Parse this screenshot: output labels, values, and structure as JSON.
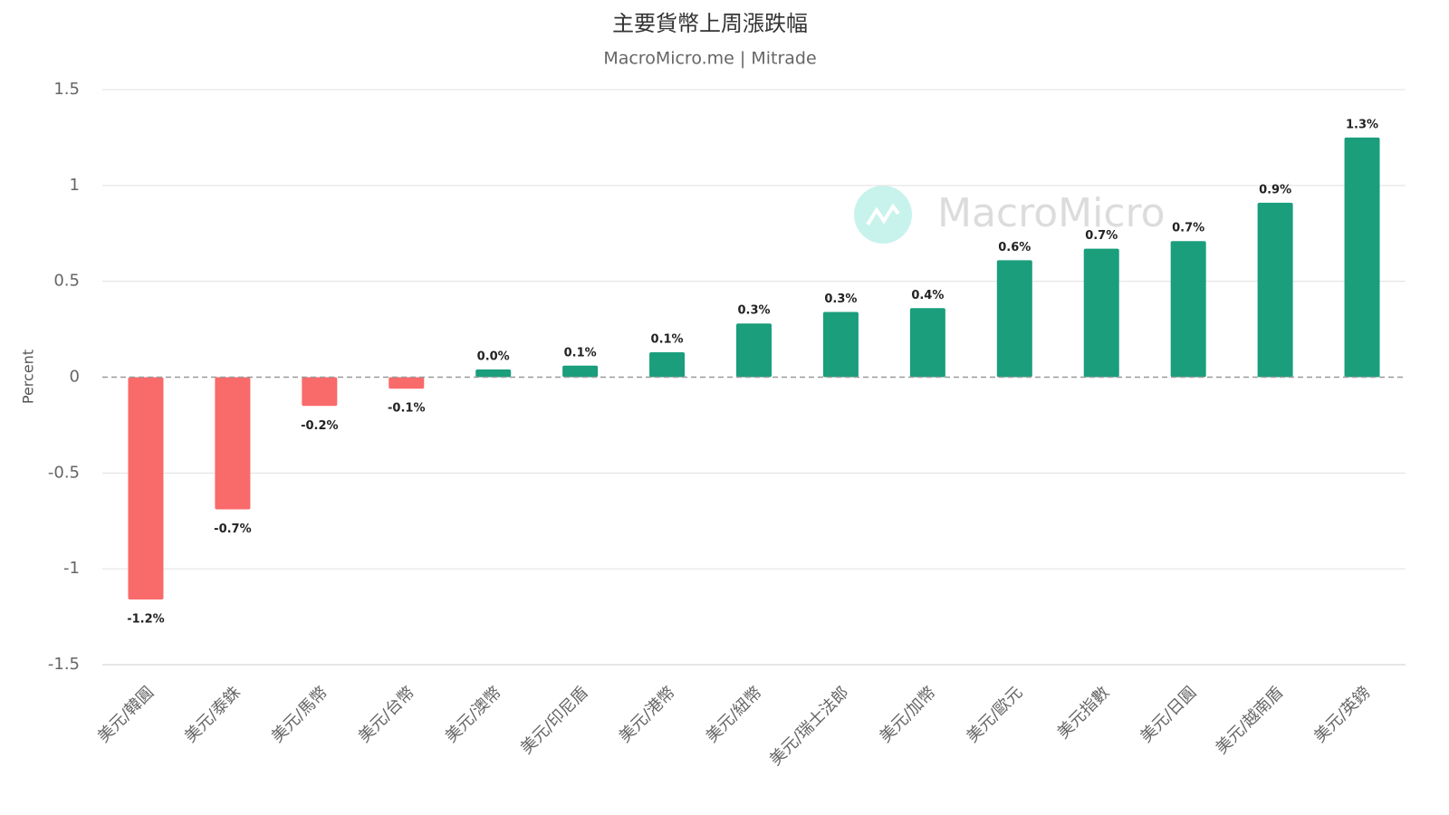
{
  "chart_data": {
    "type": "bar",
    "title": "主要貨幣上周漲跌幅",
    "subtitle": "MacroMicro.me | Mitrade",
    "watermark": "MacroMicro",
    "y_label": "Percent",
    "categories": [
      "美元/韓圓",
      "美元/泰銖",
      "美元/馬幣",
      "美元/台幣",
      "美元/澳幣",
      "美元/印尼盾",
      "美元/港幣",
      "美元/紐幣",
      "美元/瑞士法郎",
      "美元/加幣",
      "美元/歐元",
      "美元指數",
      "美元/日圓",
      "美元/越南盾",
      "美元/英鎊"
    ],
    "values": [
      -1.16,
      -0.69,
      -0.15,
      -0.06,
      0.04,
      0.06,
      0.13,
      0.28,
      0.34,
      0.36,
      0.61,
      0.67,
      0.71,
      0.91,
      1.25
    ],
    "value_labels": [
      "-1.2%",
      "-0.7%",
      "-0.2%",
      "-0.1%",
      "0.0%",
      "0.1%",
      "0.1%",
      "0.3%",
      "0.3%",
      "0.4%",
      "0.6%",
      "0.7%",
      "0.7%",
      "0.9%",
      "1.3%"
    ],
    "positive_color": "#1a9e7c",
    "negative_color": "#f96a6a",
    "ylim": [
      -1.5,
      1.5
    ],
    "yticks": [
      1.5,
      1,
      0.5,
      0,
      -0.5,
      -1,
      -1.5
    ],
    "grid": true
  }
}
